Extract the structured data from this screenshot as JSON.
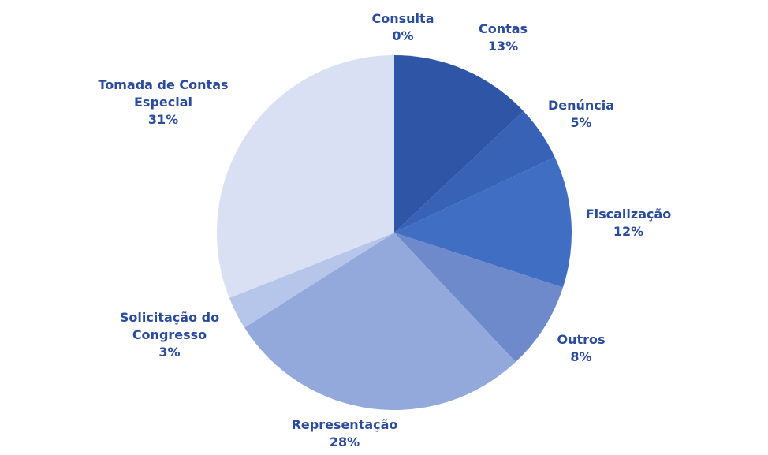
{
  "chart_data": {
    "type": "pie",
    "categories": [
      "Consulta",
      "Contas",
      "Denúncia",
      "Fiscalização",
      "Outros",
      "Representação",
      "Solicitação do Congresso",
      "Tomada de Contas Especial"
    ],
    "values": [
      0,
      13,
      5,
      12,
      8,
      28,
      3,
      31
    ],
    "value_labels": [
      "0%",
      "13%",
      "5%",
      "12%",
      "8%",
      "28%",
      "3%",
      "31%"
    ],
    "colors": [
      "#24468f",
      "#2f56a6",
      "#3762b6",
      "#3f6ec2",
      "#6e8acb",
      "#93a9dc",
      "#b6c5ea",
      "#d9e0f4"
    ]
  }
}
